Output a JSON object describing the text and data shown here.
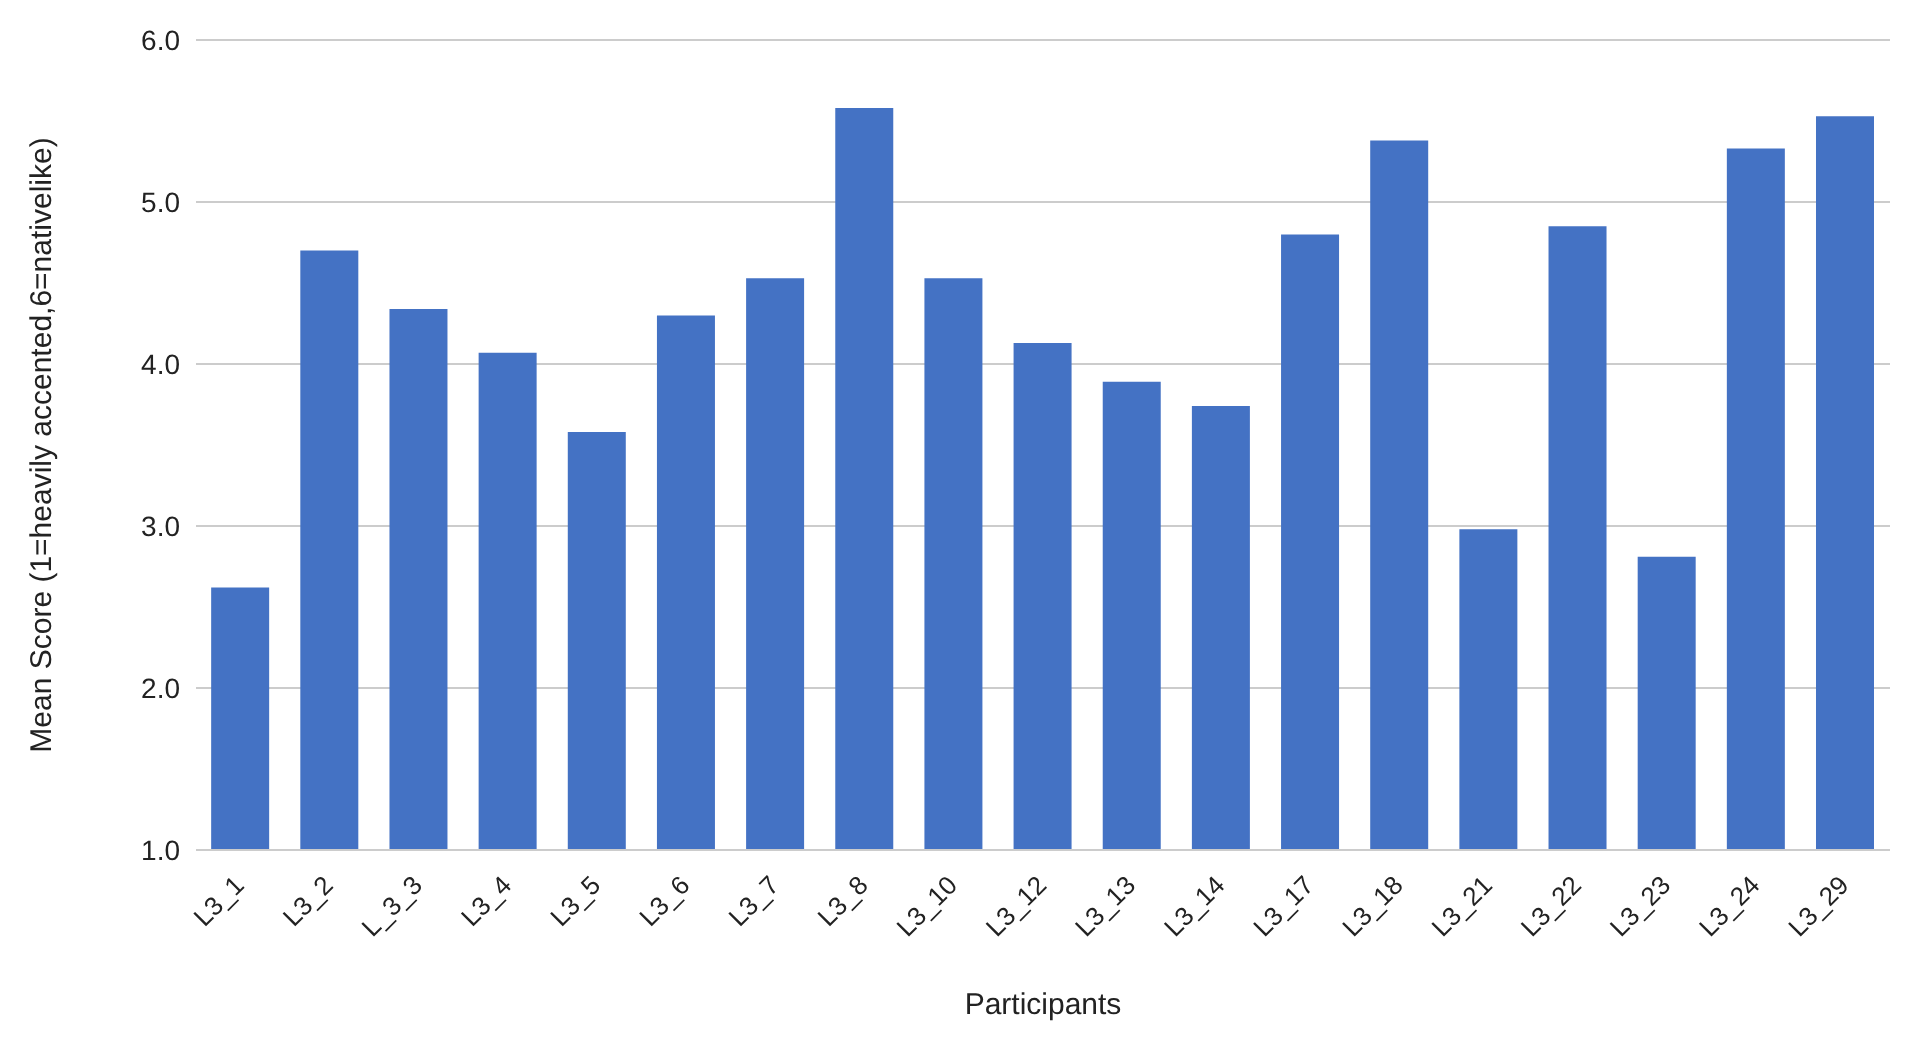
{
  "chart_data": {
    "type": "bar",
    "xlabel": "Participants",
    "ylabel": "Mean Score (1=heavily accented,6=nativelike)",
    "categories": [
      "L3_1",
      "L3_2",
      "L_3_3",
      "L3_4",
      "L3_5",
      "L3_6",
      "L3_7",
      "L3_8",
      "L3_10",
      "L3_12",
      "L3_13",
      "L3_14",
      "L3_17",
      "L3_18",
      "L3_21",
      "L3_22",
      "L3_23",
      "L3_24",
      "L3_29"
    ],
    "values": [
      2.62,
      4.7,
      4.34,
      4.07,
      3.58,
      4.3,
      4.53,
      5.58,
      4.53,
      4.13,
      3.89,
      3.74,
      4.8,
      5.38,
      2.98,
      4.85,
      2.81,
      5.33,
      5.53
    ],
    "color": "#4472c4",
    "ylim": [
      1,
      6
    ],
    "yticks": [
      {
        "value": 1,
        "label": "1.0"
      },
      {
        "value": 2,
        "label": "2.0"
      },
      {
        "value": 3,
        "label": "3.0"
      },
      {
        "value": 4,
        "label": "4.0"
      },
      {
        "value": 5,
        "label": "5.0"
      },
      {
        "value": 6,
        "label": "6.0"
      }
    ],
    "grid": "y"
  }
}
